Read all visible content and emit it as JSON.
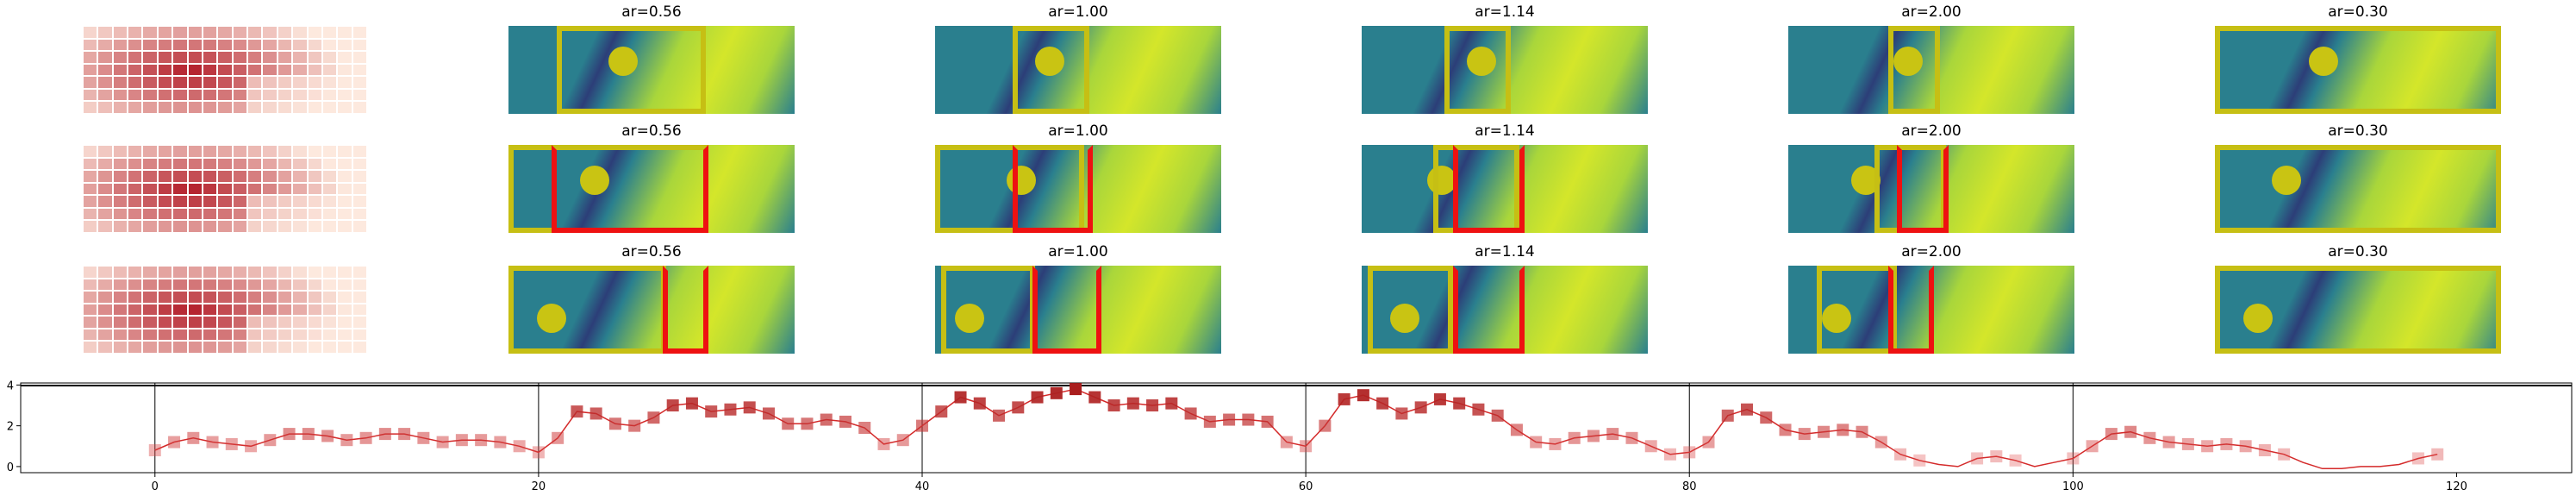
{
  "colors": {
    "teal": "#2a7f8e",
    "lime": "#d4e62a",
    "yellow_green": "#a9d63b",
    "navy": "#2c3e78",
    "proposal_box": "#c6bf14",
    "selected_box": "#ee1111",
    "line": "#d42a2a"
  },
  "rows": [
    {
      "heat_icon": "heatmap-icon",
      "panels": [
        {
          "title": "ar=0.56"
        },
        {
          "title": "ar=1.00"
        },
        {
          "title": "ar=1.14"
        },
        {
          "title": "ar=2.00"
        },
        {
          "title": "ar=0.30"
        }
      ]
    },
    {
      "heat_icon": "heatmap-icon",
      "panels": [
        {
          "title": "ar=0.56"
        },
        {
          "title": "ar=1.00"
        },
        {
          "title": "ar=1.14"
        },
        {
          "title": "ar=2.00"
        },
        {
          "title": "ar=0.30"
        }
      ]
    },
    {
      "heat_icon": "heatmap-icon",
      "panels": [
        {
          "title": "ar=0.56"
        },
        {
          "title": "ar=1.00"
        },
        {
          "title": "ar=1.14"
        },
        {
          "title": "ar=2.00"
        },
        {
          "title": "ar=0.30"
        }
      ]
    }
  ],
  "chart_data": {
    "type": "line",
    "title": "",
    "xlabel": "",
    "ylabel": "",
    "xlim": [
      -7,
      126
    ],
    "ylim": [
      -0.3,
      4.1
    ],
    "xticks": [
      0,
      20,
      40,
      60,
      80,
      100,
      120
    ],
    "yticks": [
      0,
      2,
      4
    ],
    "vertical_gridlines": [
      0,
      20,
      40,
      60,
      80,
      100
    ],
    "series": [
      {
        "x": [
          0,
          1,
          2,
          3,
          4,
          5,
          6,
          7,
          8,
          9,
          10,
          11,
          12,
          13,
          14,
          15,
          16,
          17,
          18,
          19,
          20,
          21,
          22,
          23,
          24,
          25,
          26,
          27,
          28,
          29,
          30,
          31,
          32,
          33,
          34,
          35,
          36,
          37,
          38,
          39,
          40,
          41,
          42,
          43,
          44,
          45,
          46,
          47,
          48,
          49,
          50,
          51,
          52,
          53,
          54,
          55,
          56,
          57,
          58,
          59,
          60,
          61,
          62,
          63,
          64,
          65,
          66,
          67,
          68,
          69,
          70,
          71,
          72,
          73,
          74,
          75,
          76,
          77,
          78,
          79,
          80,
          81,
          82,
          83,
          84,
          85,
          86,
          87,
          88,
          89,
          90,
          91,
          92,
          93,
          94,
          95,
          96,
          97,
          98,
          99,
          100,
          101,
          102,
          103,
          104,
          105,
          106,
          107,
          108,
          109,
          110,
          111,
          112,
          113,
          114,
          115,
          116,
          117,
          118,
          119
        ],
        "values": [
          0.8,
          1.2,
          1.4,
          1.2,
          1.1,
          1.0,
          1.3,
          1.6,
          1.6,
          1.5,
          1.3,
          1.4,
          1.6,
          1.6,
          1.4,
          1.2,
          1.3,
          1.3,
          1.2,
          1.0,
          0.7,
          1.4,
          2.7,
          2.6,
          2.1,
          2.0,
          2.4,
          3.0,
          3.1,
          2.7,
          2.8,
          2.9,
          2.6,
          2.1,
          2.1,
          2.3,
          2.2,
          1.9,
          1.1,
          1.3,
          2.0,
          2.7,
          3.4,
          3.1,
          2.5,
          2.9,
          3.4,
          3.6,
          3.8,
          3.4,
          3.0,
          3.1,
          3.0,
          3.1,
          2.6,
          2.2,
          2.3,
          2.3,
          2.2,
          1.2,
          1.0,
          2.0,
          3.3,
          3.5,
          3.1,
          2.6,
          2.9,
          3.3,
          3.1,
          2.8,
          2.5,
          1.8,
          1.2,
          1.1,
          1.4,
          1.5,
          1.6,
          1.4,
          1.0,
          0.6,
          0.7,
          1.2,
          2.5,
          2.8,
          2.4,
          1.8,
          1.6,
          1.7,
          1.8,
          1.7,
          1.2,
          0.6,
          0.3,
          0.1,
          0.0,
          0.4,
          0.5,
          0.3,
          0.0,
          0.2,
          0.4,
          1.0,
          1.6,
          1.7,
          1.4,
          1.2,
          1.1,
          1.0,
          1.1,
          1.0,
          0.8,
          0.6,
          0.2,
          -0.1,
          -0.1,
          0.0,
          0.0,
          0.1,
          0.4,
          0.6
        ]
      }
    ]
  }
}
